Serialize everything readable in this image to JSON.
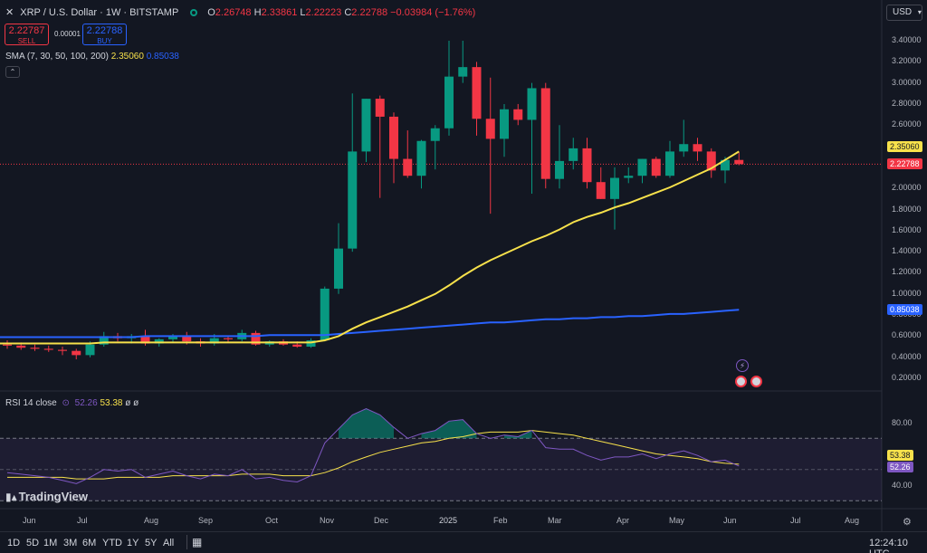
{
  "header": {
    "symbol_title": "XRP / U.S. Dollar · 1W · BITSTAMP",
    "ohlc": [
      {
        "label": "O",
        "value": "2.26748"
      },
      {
        "label": "H",
        "value": "2.33861"
      },
      {
        "label": "L",
        "value": "2.22223"
      },
      {
        "label": "C",
        "value": "2.22788"
      }
    ],
    "change": "−0.03984 (−1.76%)",
    "sell_price": "2.22787",
    "sell_label": "SELL",
    "spread": "0.00001",
    "buy_price": "2.22788",
    "buy_label": "BUY",
    "sma_label": "SMA (7, 30, 50, 100, 200)",
    "sma_value_1": "2.35060",
    "sma_value_2": "0.85038",
    "currency_button": "USD"
  },
  "rsi": {
    "label": "RSI 14 close",
    "value_1": "52.26",
    "value_2": "53.38",
    "extra_1": "ø",
    "extra_2": "ø"
  },
  "price_axis": [
    "3.40000",
    "3.20000",
    "3.00000",
    "2.80000",
    "2.60000",
    "2.40000",
    "2.20000",
    "2.00000",
    "1.80000",
    "1.60000",
    "1.40000",
    "1.20000",
    "1.00000",
    "0.80000",
    "0.60000",
    "0.40000",
    "0.20000"
  ],
  "price_tags": {
    "sma_yellow": "2.35060",
    "last_price": "2.22788",
    "sma_blue": "0.85038"
  },
  "rsi_axis": [
    "80.00",
    "40.00"
  ],
  "rsi_tags": {
    "signal": "53.38",
    "rsi": "52.26"
  },
  "time_axis": [
    "Jun",
    "Jul",
    "Aug",
    "Sep",
    "Oct",
    "Nov",
    "Dec",
    "2025",
    "Feb",
    "Mar",
    "Apr",
    "May",
    "Jun",
    "Jul",
    "Aug"
  ],
  "timeframes": [
    "1D",
    "5D",
    "1M",
    "3M",
    "6M",
    "YTD",
    "1Y",
    "5Y",
    "All"
  ],
  "clock": "12:24:10 UTC",
  "logo_text": "TradingView",
  "colors": {
    "background": "#131722",
    "up": "#089981",
    "down": "#f23645",
    "sma_yellow": "#f7e14b",
    "sma_blue": "#2962ff",
    "rsi_line": "#7e57c2"
  },
  "chart_data": {
    "type": "candlestick",
    "title": "XRP / U.S. Dollar · 1W · BITSTAMP",
    "ylim": [
      0.1,
      3.55
    ],
    "candles": [
      [
        0.52,
        0.56,
        0.48,
        0.51
      ],
      [
        0.51,
        0.54,
        0.47,
        0.49
      ],
      [
        0.49,
        0.52,
        0.46,
        0.48
      ],
      [
        0.48,
        0.51,
        0.45,
        0.47
      ],
      [
        0.47,
        0.5,
        0.42,
        0.46
      ],
      [
        0.46,
        0.48,
        0.38,
        0.42
      ],
      [
        0.42,
        0.55,
        0.4,
        0.52
      ],
      [
        0.52,
        0.64,
        0.5,
        0.6
      ],
      [
        0.6,
        0.63,
        0.55,
        0.58
      ],
      [
        0.58,
        0.62,
        0.53,
        0.6
      ],
      [
        0.6,
        0.66,
        0.51,
        0.53
      ],
      [
        0.53,
        0.58,
        0.5,
        0.57
      ],
      [
        0.57,
        0.62,
        0.54,
        0.6
      ],
      [
        0.6,
        0.64,
        0.52,
        0.55
      ],
      [
        0.55,
        0.58,
        0.5,
        0.53
      ],
      [
        0.53,
        0.62,
        0.51,
        0.58
      ],
      [
        0.58,
        0.6,
        0.54,
        0.57
      ],
      [
        0.57,
        0.66,
        0.55,
        0.63
      ],
      [
        0.63,
        0.65,
        0.51,
        0.52
      ],
      [
        0.52,
        0.56,
        0.5,
        0.55
      ],
      [
        0.55,
        0.57,
        0.51,
        0.52
      ],
      [
        0.52,
        0.55,
        0.49,
        0.5
      ],
      [
        0.5,
        0.58,
        0.49,
        0.56
      ],
      [
        0.56,
        1.07,
        0.55,
        1.05
      ],
      [
        1.05,
        1.67,
        1.0,
        1.43
      ],
      [
        1.43,
        2.9,
        1.4,
        2.35
      ],
      [
        2.35,
        2.85,
        2.25,
        2.85
      ],
      [
        2.85,
        2.88,
        1.91,
        2.68
      ],
      [
        2.68,
        2.72,
        2.05,
        2.28
      ],
      [
        2.28,
        2.55,
        2.1,
        2.12
      ],
      [
        2.12,
        2.46,
        2.0,
        2.45
      ],
      [
        2.45,
        2.6,
        2.18,
        2.57
      ],
      [
        2.57,
        3.4,
        2.5,
        3.06
      ],
      [
        3.06,
        3.4,
        3.0,
        3.15
      ],
      [
        3.15,
        3.2,
        2.5,
        2.66
      ],
      [
        2.66,
        3.05,
        1.76,
        2.47
      ],
      [
        2.47,
        2.8,
        2.3,
        2.75
      ],
      [
        2.75,
        2.8,
        2.6,
        2.65
      ],
      [
        2.65,
        3.0,
        1.95,
        2.95
      ],
      [
        2.95,
        3.0,
        2.0,
        2.09
      ],
      [
        2.09,
        2.6,
        2.0,
        2.26
      ],
      [
        2.26,
        2.48,
        2.18,
        2.38
      ],
      [
        2.38,
        2.48,
        2.0,
        2.06
      ],
      [
        2.06,
        2.2,
        1.9,
        1.9
      ],
      [
        1.9,
        2.2,
        1.61,
        2.1
      ],
      [
        2.1,
        2.2,
        2.05,
        2.12
      ],
      [
        2.12,
        2.28,
        2.05,
        2.28
      ],
      [
        2.28,
        2.3,
        2.1,
        2.12
      ],
      [
        2.12,
        2.45,
        2.1,
        2.35
      ],
      [
        2.35,
        2.65,
        2.3,
        2.42
      ],
      [
        2.42,
        2.48,
        2.26,
        2.35
      ],
      [
        2.35,
        2.38,
        2.1,
        2.17
      ],
      [
        2.17,
        2.3,
        2.05,
        2.27
      ],
      [
        2.27,
        2.34,
        2.22,
        2.23
      ]
    ],
    "sma_yellow": [
      0.53,
      0.53,
      0.53,
      0.53,
      0.53,
      0.53,
      0.53,
      0.54,
      0.54,
      0.54,
      0.54,
      0.54,
      0.54,
      0.54,
      0.54,
      0.54,
      0.54,
      0.54,
      0.54,
      0.54,
      0.54,
      0.54,
      0.54,
      0.56,
      0.6,
      0.67,
      0.73,
      0.78,
      0.83,
      0.88,
      0.94,
      1.0,
      1.08,
      1.17,
      1.25,
      1.32,
      1.38,
      1.44,
      1.5,
      1.55,
      1.61,
      1.68,
      1.73,
      1.77,
      1.82,
      1.86,
      1.91,
      1.96,
      2.01,
      2.07,
      2.13,
      2.19,
      2.27,
      2.35
    ],
    "sma_blue": [
      0.59,
      0.59,
      0.59,
      0.59,
      0.59,
      0.59,
      0.59,
      0.59,
      0.59,
      0.59,
      0.6,
      0.6,
      0.6,
      0.6,
      0.6,
      0.6,
      0.6,
      0.6,
      0.6,
      0.61,
      0.61,
      0.61,
      0.61,
      0.61,
      0.62,
      0.63,
      0.64,
      0.65,
      0.66,
      0.67,
      0.68,
      0.69,
      0.7,
      0.71,
      0.72,
      0.73,
      0.73,
      0.74,
      0.75,
      0.76,
      0.76,
      0.77,
      0.77,
      0.78,
      0.78,
      0.79,
      0.79,
      0.8,
      0.81,
      0.81,
      0.82,
      0.83,
      0.84,
      0.85
    ],
    "rsi_ylim": [
      20,
      105
    ],
    "rsi": [
      48,
      47,
      46,
      45,
      43,
      41,
      45,
      50,
      49,
      50,
      45,
      47,
      49,
      46,
      44,
      47,
      46,
      50,
      44,
      45,
      43,
      42,
      46,
      67,
      76,
      85,
      89,
      85,
      77,
      70,
      73,
      75,
      81,
      82,
      73,
      70,
      72,
      71,
      75,
      64,
      63,
      63,
      59,
      56,
      58,
      58,
      60,
      57,
      60,
      62,
      59,
      55,
      56,
      52.26
    ],
    "rsi_signal": [
      45,
      45,
      45,
      45,
      45,
      44,
      44,
      44,
      45,
      45,
      45,
      45,
      46,
      46,
      46,
      46,
      46,
      47,
      47,
      47,
      46,
      46,
      46,
      48,
      51,
      55,
      58,
      61,
      63,
      65,
      67,
      68,
      70,
      71,
      73,
      74,
      74,
      74,
      75,
      74,
      73,
      72,
      70,
      68,
      66,
      64,
      62,
      60,
      59,
      58,
      57,
      55,
      54,
      53.38
    ]
  }
}
